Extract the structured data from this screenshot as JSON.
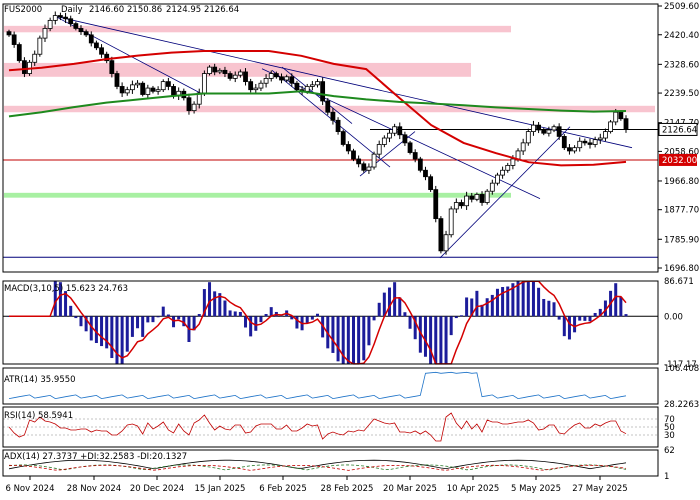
{
  "header": {
    "symbol": "FUS2000",
    "timeframe": "Daily",
    "ohlc": [
      "2146.60",
      "2150.86",
      "2124.95",
      "2126.64"
    ]
  },
  "chart_data": {
    "type": "candlestick",
    "ylim": [
      1696.8,
      2509.6
    ],
    "price_ticks": [
      "2509.60",
      "2420.40",
      "2328.60",
      "2239.50",
      "2147.70",
      "2058.60",
      "1966.80",
      "1877.70",
      "1785.90",
      "1696.80"
    ],
    "x_ticks": [
      "6 Nov 2024",
      "28 Nov 2024",
      "20 Dec 2024",
      "15 Jan 2025",
      "6 Feb 2025",
      "28 Feb 2025",
      "20 Mar 2025",
      "10 Apr 2025",
      "5 May 2025",
      "27 May 2025"
    ],
    "last_price": "2126.64",
    "level_price": "2032.00",
    "level_value": 2032.0,
    "close": [
      2420,
      2390,
      2340,
      2300,
      2335,
      2360,
      2410,
      2440,
      2465,
      2480,
      2475,
      2470,
      2455,
      2440,
      2430,
      2420,
      2395,
      2380,
      2360,
      2340,
      2300,
      2260,
      2240,
      2250,
      2265,
      2270,
      2235,
      2255,
      2245,
      2250,
      2275,
      2260,
      2230,
      2245,
      2225,
      2185,
      2205,
      2240,
      2300,
      2320,
      2305,
      2310,
      2300,
      2285,
      2295,
      2305,
      2275,
      2250,
      2255,
      2270,
      2285,
      2300,
      2290,
      2280,
      2290,
      2270,
      2250,
      2245,
      2260,
      2265,
      2275,
      2215,
      2180,
      2155,
      2120,
      2080,
      2060,
      2035,
      2020,
      2000,
      2010,
      2050,
      2080,
      2100,
      2115,
      2135,
      2110,
      2085,
      2055,
      2035,
      2000,
      1980,
      1940,
      1850,
      1750,
      1800,
      1880,
      1900,
      1890,
      1920,
      1910,
      1925,
      1900,
      1935,
      1960,
      1985,
      2000,
      2015,
      2035,
      2060,
      2085,
      2120,
      2140,
      2125,
      2115,
      2125,
      2135,
      2105,
      2070,
      2060,
      2070,
      2090,
      2085,
      2080,
      2095,
      2100,
      2120,
      2150,
      2180,
      2160,
      2126.64
    ],
    "ma_red": [
      2310,
      2318,
      2330,
      2345,
      2356,
      2365,
      2370,
      2370,
      2370,
      2355,
      2330,
      2314,
      2226,
      2140,
      2085,
      2053,
      2025,
      2015,
      2017,
      2026
    ],
    "ma_green": [
      2167,
      2180,
      2196,
      2210,
      2220,
      2230,
      2238,
      2238,
      2238,
      2245,
      2230,
      2220,
      2212,
      2207,
      2202,
      2195,
      2190,
      2185,
      2182,
      2184
    ],
    "zones_pink": [
      [
        2448,
        2428
      ],
      [
        2333,
        2290
      ],
      [
        2200,
        2180
      ]
    ],
    "zone_green": [
      1930,
      1915
    ],
    "bottom_line": 1730,
    "macd": {
      "label": "MACD(3,10,5) 15.623 24.763",
      "ticks": [
        "86.671",
        "0.00",
        "-117.17"
      ],
      "range": [
        -117.17,
        86.671
      ]
    },
    "atr": {
      "label": "ATR(14) 35.9550",
      "ticks": [
        "106.4087",
        "28.2263"
      ],
      "range": [
        28.2263,
        106.4087
      ]
    },
    "rsi": {
      "label": "RSI(14) 58.5941",
      "ticks": [
        "70",
        "50",
        "30"
      ],
      "range": [
        0,
        100
      ]
    },
    "adx": {
      "label": "ADX(14) 27.3737 +DI:32.2583 -DI:20.1327",
      "ticks": [
        "62",
        "1"
      ],
      "range": [
        1,
        62
      ]
    }
  }
}
